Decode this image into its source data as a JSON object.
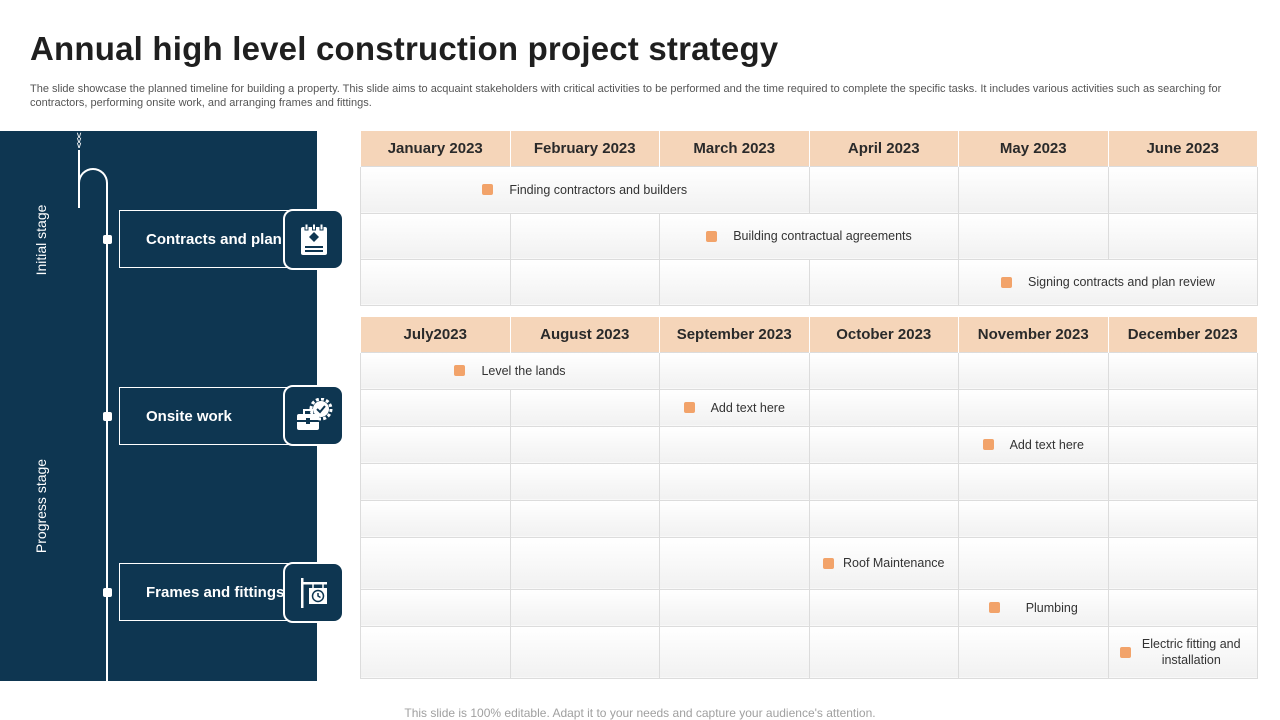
{
  "title": "Annual high level construction project strategy",
  "description": "The slide showcase the planned timeline for building a property. This slide aims to acquaint stakeholders with critical activities to be performed and the time required to complete the specific tasks. It includes various activities such as searching for contractors, performing onsite work, and arranging frames and fittings.",
  "stages": {
    "initial": "Initial stage",
    "progress": "Progress stage"
  },
  "steps": [
    {
      "label": "Contracts and plan",
      "icon": "contract-document-icon"
    },
    {
      "label": "Onsite work",
      "icon": "toolbox-gear-icon"
    },
    {
      "label": "Frames and fittings",
      "icon": "hanging-sign-clock-icon"
    }
  ],
  "table1": {
    "months": [
      "January 2023",
      "February 2023",
      "March 2023",
      "April 2023",
      "May 2023",
      "June 2023"
    ],
    "tasks": [
      "Finding contractors and builders",
      "Building contractual agreements",
      "Signing contracts and plan review"
    ]
  },
  "table2": {
    "months": [
      "July2023",
      "August 2023",
      "September 2023",
      "October 2023",
      "November 2023",
      "December 2023"
    ],
    "tasks": [
      "Level the lands",
      "Add text here",
      "Add text here",
      "Roof Maintenance",
      "Plumbing",
      "Electric fitting and installation"
    ]
  },
  "colors": {
    "sidebar": "#0e3651",
    "header": "#f5d5b9",
    "marker": "#f2a36a"
  },
  "footer": "This slide is 100% editable. Adapt it to your needs and capture your audience's attention."
}
